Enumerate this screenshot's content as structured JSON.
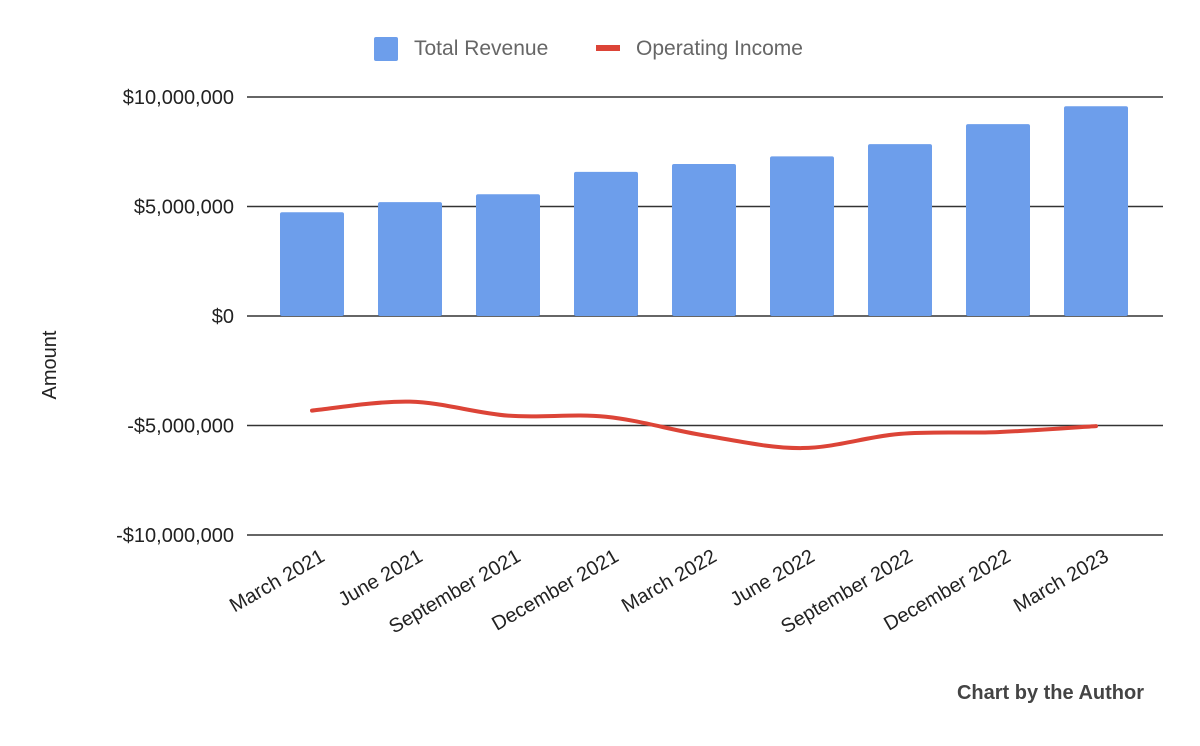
{
  "chart_data": {
    "type": "bar",
    "title": "",
    "xlabel": "",
    "ylabel": "Amount",
    "ylim": [
      -10000000,
      10000000
    ],
    "yticks": [
      10000000,
      5000000,
      0,
      -5000000,
      -10000000
    ],
    "ytick_labels": [
      "$10,000,000",
      "$5,000,000",
      "$0",
      "-$5,000,000",
      "-$10,000,000"
    ],
    "categories": [
      "March 2021",
      "June 2021",
      "September 2021",
      "December 2021",
      "March 2022",
      "June 2022",
      "September 2022",
      "December 2022",
      "March 2023"
    ],
    "grid": true,
    "legend": "top",
    "series": [
      {
        "name": "Total Revenue",
        "type": "bar",
        "color": "#6d9eeb",
        "values": [
          4740000,
          5200000,
          5560000,
          6580000,
          6940000,
          7290000,
          7850000,
          8760000,
          9580000
        ]
      },
      {
        "name": "Operating Income",
        "type": "line",
        "smooth": true,
        "color": "#dc4437",
        "values": [
          -4320000,
          -3910000,
          -4550000,
          -4600000,
          -5450000,
          -6030000,
          -5380000,
          -5300000,
          -5030000
        ]
      }
    ],
    "annotation": "Chart by the Author"
  }
}
